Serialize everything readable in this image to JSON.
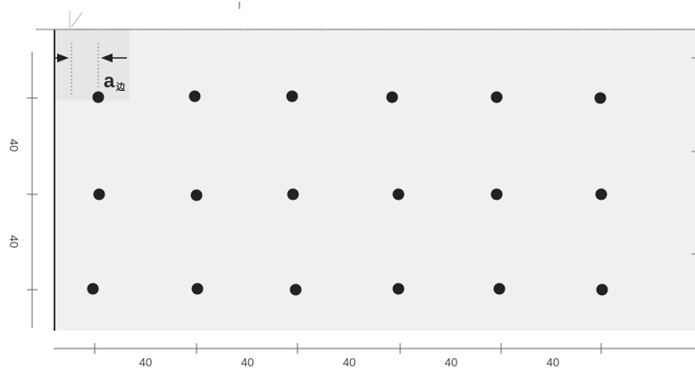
{
  "colors": {
    "panel": "#f0f0f0",
    "dot": "#222222",
    "dim_line": "#555555",
    "centerline": "#888888"
  },
  "edge_marker": {
    "label": "a",
    "subscript": "边"
  },
  "horizontal_dimensions": [
    "40",
    "40",
    "40",
    "40",
    "40"
  ],
  "vertical_dimensions": [
    "40",
    "40"
  ],
  "dot_grid": {
    "rows": 3,
    "columns": 6
  }
}
